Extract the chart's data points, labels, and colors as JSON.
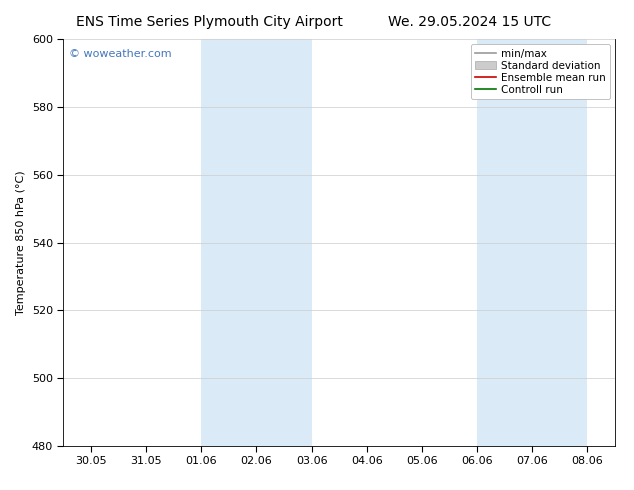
{
  "title_left": "ENS Time Series Plymouth City Airport",
  "title_right": "We. 29.05.2024 15 UTC",
  "ylabel": "Temperature 850 hPa (°C)",
  "ylim": [
    480,
    600
  ],
  "yticks": [
    480,
    500,
    520,
    540,
    560,
    580,
    600
  ],
  "x_labels": [
    "30.05",
    "31.05",
    "01.06",
    "02.06",
    "03.06",
    "04.06",
    "05.06",
    "06.06",
    "07.06",
    "08.06"
  ],
  "x_values": [
    0,
    1,
    2,
    3,
    4,
    5,
    6,
    7,
    8,
    9
  ],
  "xlim": [
    -0.5,
    9.5
  ],
  "shaded_regions": [
    {
      "xmin": 2.0,
      "xmax": 4.0,
      "color": "#daeaf7"
    },
    {
      "xmin": 7.0,
      "xmax": 9.0,
      "color": "#daeaf7"
    }
  ],
  "background_color": "#ffffff",
  "watermark": "© woweather.com",
  "watermark_color": "#4477bb",
  "legend_items": [
    {
      "label": "min/max",
      "color": "#999999",
      "lw": 1.2,
      "ls": "-",
      "type": "line"
    },
    {
      "label": "Standard deviation",
      "color": "#cccccc",
      "lw": 6,
      "ls": "-",
      "type": "patch"
    },
    {
      "label": "Ensemble mean run",
      "color": "#cc0000",
      "lw": 1.2,
      "ls": "-",
      "type": "line"
    },
    {
      "label": "Controll run",
      "color": "#007700",
      "lw": 1.2,
      "ls": "-",
      "type": "line"
    }
  ],
  "grid_color": "#cccccc",
  "axis_color": "#000000",
  "title_fontsize": 10,
  "label_fontsize": 8,
  "tick_fontsize": 8,
  "legend_fontsize": 7.5
}
